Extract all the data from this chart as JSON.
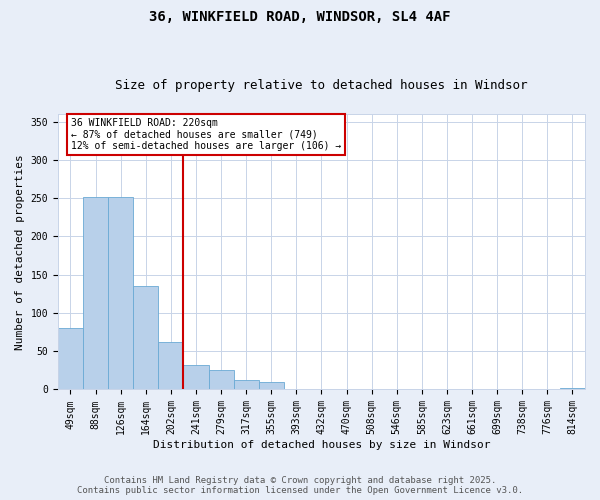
{
  "title_line1": "36, WINKFIELD ROAD, WINDSOR, SL4 4AF",
  "title_line2": "Size of property relative to detached houses in Windsor",
  "xlabel": "Distribution of detached houses by size in Windsor",
  "ylabel": "Number of detached properties",
  "bar_labels": [
    "49sqm",
    "88sqm",
    "126sqm",
    "164sqm",
    "202sqm",
    "241sqm",
    "279sqm",
    "317sqm",
    "355sqm",
    "393sqm",
    "432sqm",
    "470sqm",
    "508sqm",
    "546sqm",
    "585sqm",
    "623sqm",
    "661sqm",
    "699sqm",
    "738sqm",
    "776sqm",
    "814sqm"
  ],
  "bar_values": [
    80,
    251,
    251,
    135,
    62,
    32,
    25,
    13,
    10,
    1,
    1,
    1,
    0,
    0,
    1,
    0,
    1,
    0,
    0,
    0,
    2
  ],
  "bar_color": "#b8d0ea",
  "bar_edgecolor": "#6aaad4",
  "vline_color": "#cc0000",
  "annotation_text": "36 WINKFIELD ROAD: 220sqm\n← 87% of detached houses are smaller (749)\n12% of semi-detached houses are larger (106) →",
  "annotation_box_color": "white",
  "annotation_box_edgecolor": "#cc0000",
  "ylim": [
    0,
    360
  ],
  "yticks": [
    0,
    50,
    100,
    150,
    200,
    250,
    300,
    350
  ],
  "footer_line1": "Contains HM Land Registry data © Crown copyright and database right 2025.",
  "footer_line2": "Contains public sector information licensed under the Open Government Licence v3.0.",
  "bg_color": "#e8eef8",
  "plot_bg_color": "white",
  "grid_color": "#c8d4e8",
  "title_fontsize": 10,
  "subtitle_fontsize": 9,
  "tick_fontsize": 7,
  "label_fontsize": 8,
  "annot_fontsize": 7,
  "footer_fontsize": 6.5
}
